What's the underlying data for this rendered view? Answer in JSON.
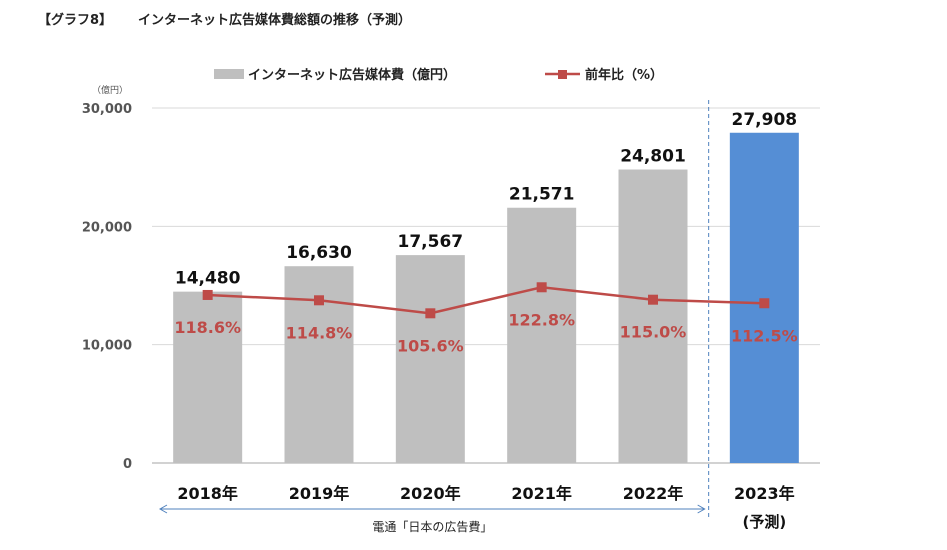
{
  "header": {
    "graph_no": "【グラフ8】",
    "title": "インターネット広告媒体費総額の推移（予測）"
  },
  "chart_data": {
    "type": "bar",
    "unit_label": "（億円）",
    "categories": [
      "2018年",
      "2019年",
      "2020年",
      "2021年",
      "2022年",
      "2023年"
    ],
    "forecast_sublabel": "(予測)",
    "series": [
      {
        "name": "インターネット広告媒体費（億円）",
        "kind": "bar",
        "values": [
          14480,
          16630,
          17567,
          21571,
          24801,
          27908
        ],
        "value_labels": [
          "14,480",
          "16,630",
          "17,567",
          "21,571",
          "24,801",
          "27,908"
        ],
        "color": "#bfbfbf",
        "forecast_color": "#558ed5"
      },
      {
        "name": "前年比（%）",
        "kind": "line",
        "point_y": [
          14200,
          13750,
          12650,
          14850,
          13800,
          13500
        ],
        "value_labels": [
          "118.6%",
          "114.8%",
          "105.6%",
          "122.8%",
          "115.0%",
          "112.5%"
        ],
        "color": "#be4b48"
      }
    ],
    "ylim": [
      0,
      30000
    ],
    "y_ticks": [
      0,
      10000,
      20000,
      30000
    ],
    "y_tick_labels": [
      "0",
      "10,000",
      "20,000",
      "30,000"
    ],
    "grid": true,
    "legend": "top",
    "source": "電通「日本の広告費」",
    "source_span_categories": [
      0,
      4
    ]
  }
}
